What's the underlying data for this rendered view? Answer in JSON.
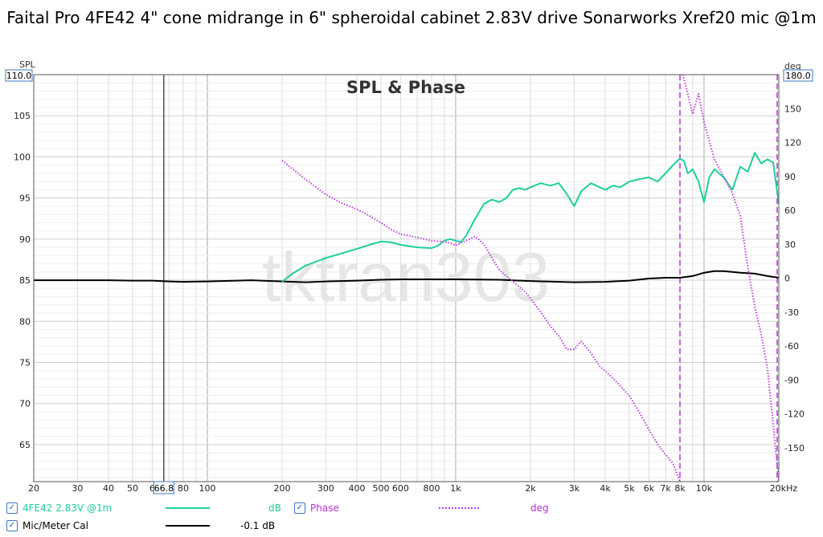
{
  "title": "Faital Pro 4FE42 4\" cone midrange in 6\" spheroidal cabinet 2.83V drive Sonarworks Xref20 mic @1m",
  "chart_data": {
    "type": "line",
    "title": "SPL & Phase",
    "watermark": "tktran303",
    "y_left": {
      "label": "SPL",
      "range": [
        60.5,
        110
      ],
      "top_readout": "110.0",
      "ticks": [
        65,
        70,
        75,
        80,
        85,
        90,
        95,
        100,
        105
      ]
    },
    "y_right": {
      "label": "deg",
      "range": [
        -180,
        180
      ],
      "top_readout": "180.0",
      "ticks": [
        150,
        120,
        90,
        60,
        30,
        0,
        -30,
        -60,
        -90,
        -120,
        -150
      ]
    },
    "x_axis": {
      "scale": "log",
      "range": [
        20,
        20000
      ],
      "unit": "kHz",
      "tick_labels": [
        {
          "v": 20,
          "t": "20"
        },
        {
          "v": 30,
          "t": "30"
        },
        {
          "v": 40,
          "t": "40"
        },
        {
          "v": 50,
          "t": "50"
        },
        {
          "v": 60,
          "t": "6"
        },
        {
          "v": 80,
          "t": "80"
        },
        {
          "v": 100,
          "t": "100"
        },
        {
          "v": 200,
          "t": "200"
        },
        {
          "v": 300,
          "t": "300"
        },
        {
          "v": 400,
          "t": "400"
        },
        {
          "v": 500,
          "t": "500"
        },
        {
          "v": 600,
          "t": "600"
        },
        {
          "v": 800,
          "t": "800"
        },
        {
          "v": 1000,
          "t": "1k"
        },
        {
          "v": 2000,
          "t": "2k"
        },
        {
          "v": 3000,
          "t": "3k"
        },
        {
          "v": 4000,
          "t": "4k"
        },
        {
          "v": 5000,
          "t": "5k"
        },
        {
          "v": 6000,
          "t": "6k"
        },
        {
          "v": 7000,
          "t": "7k"
        },
        {
          "v": 8000,
          "t": "8k"
        },
        {
          "v": 10000,
          "t": "10k"
        },
        {
          "v": 20000,
          "t": "20kHz"
        }
      ],
      "cursor": {
        "value": 66.8,
        "label": "66.8"
      }
    },
    "markers": [
      {
        "freq": 8000,
        "color": "#c03cde"
      },
      {
        "freq": 20000,
        "color": "#c03cde"
      }
    ],
    "series": [
      {
        "name": "4FE42 2.83V @1m",
        "unit": "dB",
        "axis": "left",
        "color": "#1dcf9a",
        "style": "solid",
        "x": [
          200,
          220,
          250,
          300,
          350,
          400,
          450,
          500,
          550,
          600,
          700,
          800,
          850,
          900,
          950,
          1000,
          1050,
          1100,
          1200,
          1300,
          1400,
          1500,
          1600,
          1700,
          1800,
          1900,
          2000,
          2200,
          2400,
          2600,
          2800,
          3000,
          3200,
          3500,
          3800,
          4000,
          4300,
          4600,
          5000,
          5500,
          6000,
          6500,
          7000,
          7500,
          8000,
          8300,
          8600,
          9000,
          9500,
          10000,
          10500,
          11000,
          12000,
          13000,
          14000,
          15000,
          16000,
          17000,
          18000,
          19000,
          20000
        ],
        "y": [
          84.8,
          85.8,
          86.8,
          87.7,
          88.3,
          88.8,
          89.3,
          89.7,
          89.6,
          89.3,
          89.0,
          88.9,
          89.2,
          89.8,
          90.0,
          89.8,
          89.6,
          90.4,
          92.5,
          94.3,
          94.8,
          94.5,
          95.0,
          96.0,
          96.2,
          96.0,
          96.3,
          96.8,
          96.5,
          96.8,
          95.5,
          94.0,
          95.8,
          96.8,
          96.3,
          96.0,
          96.5,
          96.3,
          97.0,
          97.3,
          97.5,
          97.0,
          98.0,
          99.0,
          99.8,
          99.5,
          98.0,
          98.5,
          97.0,
          94.5,
          97.5,
          98.5,
          97.5,
          96.0,
          98.8,
          98.2,
          100.5,
          99.2,
          99.7,
          99.3,
          94.3
        ]
      },
      {
        "name": "Phase",
        "unit": "deg",
        "axis": "right",
        "color": "#c03cde",
        "style": "dotted",
        "x": [
          200,
          250,
          300,
          350,
          400,
          450,
          500,
          550,
          600,
          700,
          800,
          900,
          950,
          1000,
          1100,
          1200,
          1300,
          1400,
          1500,
          1700,
          1900,
          2000,
          2200,
          2400,
          2600,
          2800,
          3000,
          3200,
          3500,
          3800,
          4000,
          4500,
          5000,
          5500,
          6000,
          6500,
          7000,
          7500,
          8000,
          8200,
          8500,
          9000,
          9500,
          10000,
          11000,
          12000,
          13000,
          14000,
          15000,
          16000,
          17000,
          18000,
          19000,
          20000
        ],
        "y": [
          104,
          87,
          74,
          66,
          61,
          55,
          49,
          43,
          39,
          36,
          33,
          32,
          31,
          29,
          33,
          37,
          30,
          18,
          7,
          -3,
          -12,
          -18,
          -30,
          -42,
          -51,
          -63,
          -63,
          -56,
          -66,
          -78,
          -82,
          -93,
          -104,
          -119,
          -134,
          -147,
          -156,
          -164,
          -180,
          180,
          168,
          145,
          163,
          138,
          105,
          90,
          75,
          55,
          10,
          -25,
          -50,
          -80,
          -130,
          -180
        ]
      },
      {
        "name": "Mic/Meter Cal",
        "unit": "-0.1 dB",
        "axis": "left",
        "color": "#000000",
        "style": "solid",
        "x": [
          20,
          30,
          40,
          50,
          60,
          70,
          80,
          100,
          150,
          200,
          250,
          300,
          400,
          500,
          600,
          800,
          1000,
          1500,
          2000,
          3000,
          4000,
          5000,
          6000,
          7000,
          8000,
          9000,
          10000,
          11000,
          12000,
          14000,
          16000,
          18000,
          20000
        ],
        "y": [
          85.0,
          85.0,
          85.0,
          84.95,
          84.95,
          84.85,
          84.8,
          84.85,
          85.0,
          84.85,
          84.75,
          84.85,
          84.95,
          85.05,
          85.1,
          85.1,
          85.1,
          85.05,
          84.9,
          84.75,
          84.8,
          84.95,
          85.2,
          85.3,
          85.3,
          85.5,
          85.9,
          86.1,
          86.1,
          85.9,
          85.8,
          85.5,
          85.3
        ]
      }
    ],
    "legend": {
      "placement": "bottom-left",
      "entries": [
        {
          "label": "4FE42 2.83V @1m",
          "unit": "dB",
          "checked": true,
          "color": "#1dcf9a",
          "style": "solid"
        },
        {
          "label": "Phase",
          "unit": "deg",
          "checked": true,
          "color": "#c03cde",
          "style": "dotted"
        },
        {
          "label": "Mic/Meter Cal",
          "unit": "-0.1 dB",
          "checked": true,
          "color": "#000000",
          "style": "solid"
        }
      ]
    },
    "grid": true
  }
}
